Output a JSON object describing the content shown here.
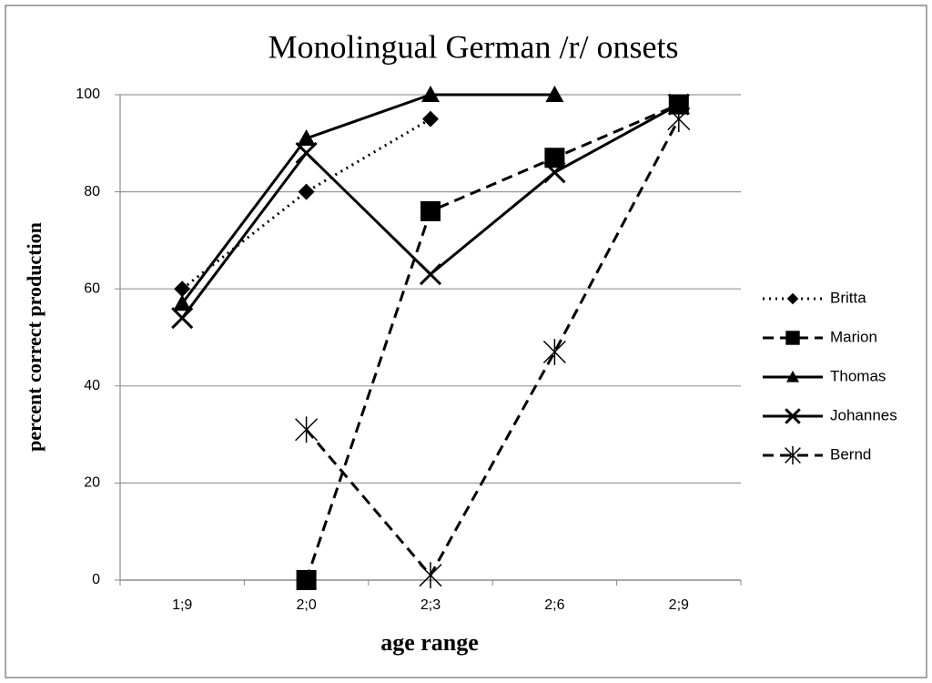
{
  "chart_data": {
    "type": "line",
    "title": "Monolingual German /r/ onsets",
    "xlabel": "age range",
    "ylabel": "percent correct production",
    "categories": [
      "1;9",
      "2;0",
      "2;3",
      "2;6",
      "2;9"
    ],
    "ylim": [
      0,
      100
    ],
    "yticks": [
      0,
      20,
      40,
      60,
      80,
      100
    ],
    "grid": true,
    "legend": "right",
    "series": [
      {
        "name": "Britta",
        "color": "#000000",
        "dash": "dotted",
        "marker": "diamond",
        "values": [
          60,
          80,
          95,
          null,
          null
        ]
      },
      {
        "name": "Marion",
        "color": "#000000",
        "dash": "dashed",
        "marker": "square",
        "values": [
          null,
          0,
          76,
          87,
          98
        ]
      },
      {
        "name": "Thomas",
        "color": "#000000",
        "dash": "solid",
        "marker": "triangle",
        "values": [
          57,
          91,
          100,
          100,
          null
        ]
      },
      {
        "name": "Johannes",
        "color": "#000000",
        "dash": "solid",
        "marker": "x",
        "values": [
          54,
          88,
          63,
          84,
          98
        ]
      },
      {
        "name": "Bernd",
        "color": "#000000",
        "dash": "dashed",
        "marker": "star",
        "values": [
          null,
          31,
          1,
          47,
          95
        ]
      }
    ]
  }
}
